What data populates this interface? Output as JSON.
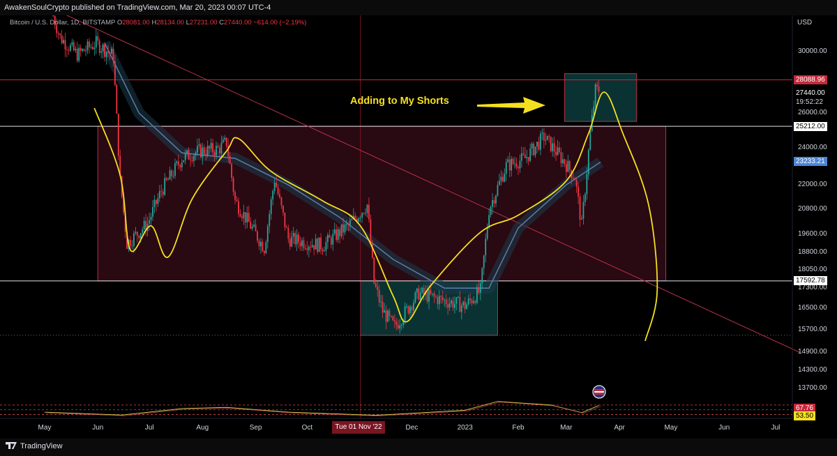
{
  "header": {
    "text": "AwakenSoulCrypto published on TradingView.com, Mar 20, 2023 00:07 UTC-4"
  },
  "symbol": {
    "name": "Bitcoin / U.S. Dollar, 1D, BITSTAMP",
    "open_label": "O",
    "open": "28081.00",
    "high_label": "H",
    "high": "28134.00",
    "low_label": "L",
    "low": "27231.00",
    "close_label": "C",
    "close": "27440.00",
    "change": "−614.00 (−2.19%)"
  },
  "axis_unit": "USD",
  "annotation": "Adding to My Shorts",
  "date_cursor": "Tue 01 Nov '22",
  "footer_logo": "TradingView",
  "colors": {
    "up": "#26a69a",
    "down": "#f23645",
    "cycle_curve": "#f5e01f",
    "zone": "#4a1020",
    "zone_border": "#b8324a",
    "box": "#0d3b3b",
    "ma": "#5b7fa8"
  },
  "chart_data": {
    "type": "candlestick",
    "title": "",
    "xlabel": "",
    "ylabel": "USD",
    "yscale": "log",
    "ylim": [
      13100,
      33500
    ],
    "x_ticks": [
      "May",
      "Jun",
      "Jul",
      "Aug",
      "Sep",
      "Oct",
      "Nov",
      "Dec",
      "2023",
      "Feb",
      "Mar",
      "Apr",
      "May",
      "Jun",
      "Jul"
    ],
    "y_ticks": [
      30000,
      26000,
      24000,
      22000,
      20800,
      19600,
      18800,
      18050,
      17300,
      16500,
      15700,
      14900,
      14300,
      13700
    ],
    "y_tick_labels": [
      "30000.00",
      "26000.00",
      "24000.00",
      "22000.00",
      "20800.00",
      "19600.00",
      "18800.00",
      "18050.00",
      "17300.00",
      "16500.00",
      "15700.00",
      "14900.00",
      "14300.00",
      "13700.00"
    ],
    "price_levels": [
      {
        "value": 28088.96,
        "label": "28088.96",
        "style": "red"
      },
      {
        "value": 27440.0,
        "label": "27440.00",
        "style": "last"
      },
      {
        "value": 25212.0,
        "label": "25212.00",
        "style": "white"
      },
      {
        "value": 23233.21,
        "label": "23233.21",
        "style": "blue"
      },
      {
        "value": 17592.78,
        "label": "17592.78",
        "style": "white"
      }
    ],
    "countdown": "19:52:22",
    "price_path": [
      {
        "date": "2022-05-05",
        "price": 33000
      },
      {
        "date": "2022-05-10",
        "price": 31000
      },
      {
        "date": "2022-05-20",
        "price": 29800
      },
      {
        "date": "2022-05-31",
        "price": 30600
      },
      {
        "date": "2022-06-10",
        "price": 29700
      },
      {
        "date": "2022-06-14",
        "price": 22200
      },
      {
        "date": "2022-06-18",
        "price": 19200
      },
      {
        "date": "2022-06-30",
        "price": 20100
      },
      {
        "date": "2022-07-08",
        "price": 21700
      },
      {
        "date": "2022-07-20",
        "price": 23400
      },
      {
        "date": "2022-07-30",
        "price": 23800
      },
      {
        "date": "2022-08-10",
        "price": 23900
      },
      {
        "date": "2022-08-15",
        "price": 24300
      },
      {
        "date": "2022-08-20",
        "price": 21200
      },
      {
        "date": "2022-09-06",
        "price": 19000
      },
      {
        "date": "2022-09-12",
        "price": 22300
      },
      {
        "date": "2022-09-20",
        "price": 19400
      },
      {
        "date": "2022-10-10",
        "price": 19100
      },
      {
        "date": "2022-10-25",
        "price": 20000
      },
      {
        "date": "2022-11-05",
        "price": 21000
      },
      {
        "date": "2022-11-09",
        "price": 17500
      },
      {
        "date": "2022-11-14",
        "price": 16400
      },
      {
        "date": "2022-11-21",
        "price": 15800
      },
      {
        "date": "2022-12-05",
        "price": 17100
      },
      {
        "date": "2022-12-20",
        "price": 16800
      },
      {
        "date": "2023-01-01",
        "price": 16600
      },
      {
        "date": "2023-01-10",
        "price": 17200
      },
      {
        "date": "2023-01-15",
        "price": 20800
      },
      {
        "date": "2023-01-25",
        "price": 23000
      },
      {
        "date": "2023-02-05",
        "price": 23400
      },
      {
        "date": "2023-02-16",
        "price": 24600
      },
      {
        "date": "2023-02-28",
        "price": 23200
      },
      {
        "date": "2023-03-06",
        "price": 22400
      },
      {
        "date": "2023-03-10",
        "price": 20000
      },
      {
        "date": "2023-03-15",
        "price": 24800
      },
      {
        "date": "2023-03-18",
        "price": 27400
      },
      {
        "date": "2023-03-20",
        "price": 27440
      }
    ],
    "moving_average": [
      {
        "date": "2022-06-05",
        "price": 30600
      },
      {
        "date": "2022-06-25",
        "price": 26000
      },
      {
        "date": "2022-07-20",
        "price": 23700
      },
      {
        "date": "2022-08-20",
        "price": 23400
      },
      {
        "date": "2022-09-20",
        "price": 22000
      },
      {
        "date": "2022-10-20",
        "price": 20400
      },
      {
        "date": "2022-11-20",
        "price": 18500
      },
      {
        "date": "2022-12-20",
        "price": 17300
      },
      {
        "date": "2023-01-15",
        "price": 17300
      },
      {
        "date": "2023-02-01",
        "price": 19900
      },
      {
        "date": "2023-03-01",
        "price": 22000
      },
      {
        "date": "2023-03-21",
        "price": 23200
      }
    ],
    "cycle_curve": [
      {
        "date": "2022-05-30",
        "price": 26300
      },
      {
        "date": "2022-06-14",
        "price": 22500
      },
      {
        "date": "2022-06-20",
        "price": 18900
      },
      {
        "date": "2022-07-02",
        "price": 20000
      },
      {
        "date": "2022-07-12",
        "price": 18600
      },
      {
        "date": "2022-07-26",
        "price": 21300
      },
      {
        "date": "2022-08-15",
        "price": 23800
      },
      {
        "date": "2022-08-22",
        "price": 24500
      },
      {
        "date": "2022-09-10",
        "price": 22700
      },
      {
        "date": "2022-10-10",
        "price": 21200
      },
      {
        "date": "2022-11-01",
        "price": 20000
      },
      {
        "date": "2022-11-20",
        "price": 17000
      },
      {
        "date": "2022-11-28",
        "price": 16000
      },
      {
        "date": "2022-12-12",
        "price": 17400
      },
      {
        "date": "2023-01-10",
        "price": 19700
      },
      {
        "date": "2023-02-01",
        "price": 20500
      },
      {
        "date": "2023-03-01",
        "price": 22200
      },
      {
        "date": "2023-03-14",
        "price": 24800
      },
      {
        "date": "2023-03-23",
        "price": 27300
      },
      {
        "date": "2023-04-03",
        "price": 24800
      },
      {
        "date": "2023-04-18",
        "price": 21000
      },
      {
        "date": "2023-04-23",
        "price": 17200
      },
      {
        "date": "2023-04-16",
        "price": 15300
      }
    ],
    "zones": [
      {
        "from": "2022-06-01",
        "to": "2023-04-28",
        "low": 17592.78,
        "high": 25212.0,
        "kind": "range"
      },
      {
        "from": "2022-11-01",
        "to": "2023-01-20",
        "low": 15500,
        "high": 17592.78,
        "kind": "accumulation"
      },
      {
        "from": "2023-02-28",
        "to": "2023-04-11",
        "low": 25500,
        "high": 28500,
        "kind": "distribution"
      }
    ],
    "trendline": [
      {
        "date": "2022-05-08",
        "price": 33000
      },
      {
        "date": "2023-07-15",
        "price": 14900
      }
    ],
    "rsi": {
      "values": [
        {
          "date": "2022-05-01",
          "value": 40
        },
        {
          "date": "2022-06-15",
          "value": 28
        },
        {
          "date": "2022-07-20",
          "value": 55
        },
        {
          "date": "2022-08-15",
          "value": 60
        },
        {
          "date": "2022-09-20",
          "value": 40
        },
        {
          "date": "2022-11-10",
          "value": 27
        },
        {
          "date": "2023-01-01",
          "value": 48
        },
        {
          "date": "2023-01-20",
          "value": 85
        },
        {
          "date": "2023-02-20",
          "value": 70
        },
        {
          "date": "2023-03-10",
          "value": 38
        },
        {
          "date": "2023-03-20",
          "value": 67.76
        }
      ],
      "labels": [
        "67.76",
        "53.50"
      ]
    }
  }
}
